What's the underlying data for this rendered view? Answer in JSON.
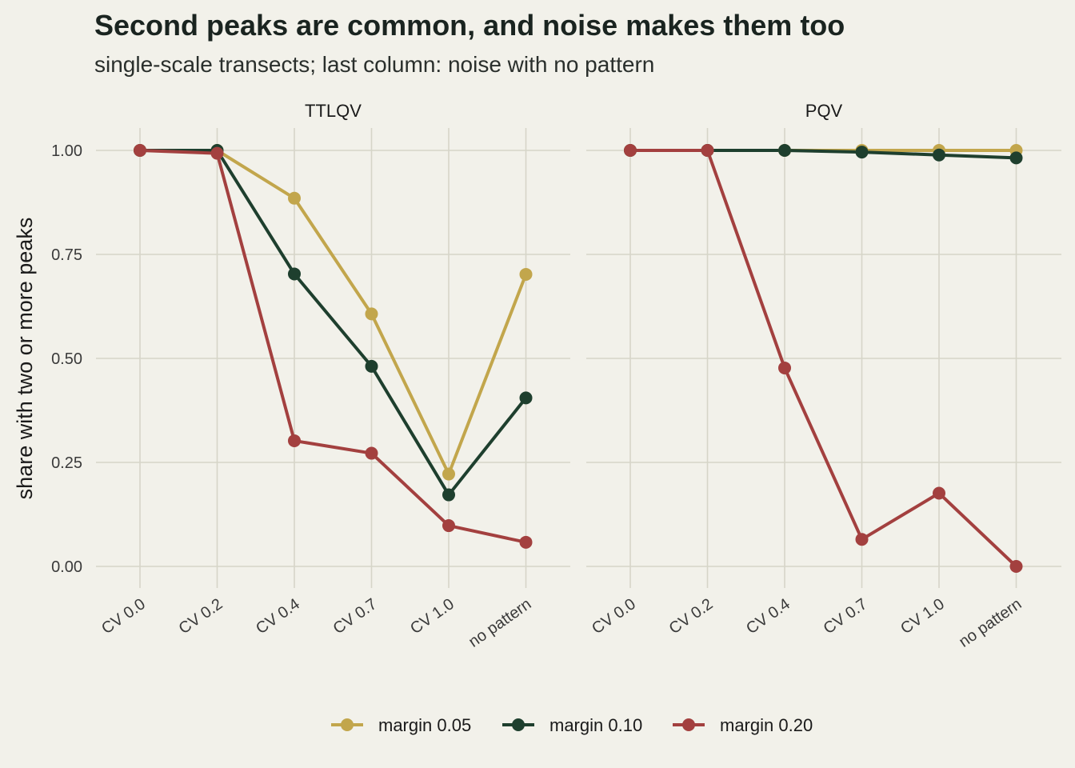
{
  "title": "Second peaks are common, and noise makes them too",
  "subtitle": "single-scale transects; last column: noise with no pattern",
  "chart_data": {
    "type": "line",
    "ylabel": "share with two or more peaks",
    "ylim": [
      0,
      1
    ],
    "yticks": [
      0,
      0.25,
      0.5,
      0.75,
      1.0
    ],
    "ytick_labels": [
      "0.00",
      "0.25",
      "0.50",
      "0.75",
      "1.00"
    ],
    "categories": [
      "CV 0.0",
      "CV 0.2",
      "CV 0.4",
      "CV 0.7",
      "CV 1.0",
      "no pattern"
    ],
    "grid": true,
    "legend_position": "bottom",
    "series_meta": [
      {
        "name": "margin 0.05",
        "color": "#c2a64c"
      },
      {
        "name": "margin 0.10",
        "color": "#1e3f2e"
      },
      {
        "name": "margin 0.20",
        "color": "#a3403f"
      }
    ],
    "panels": [
      {
        "label": "TTLQV",
        "series": [
          {
            "name": "margin 0.05",
            "values": [
              1.0,
              1.0,
              0.885,
              0.607,
              0.222,
              0.702
            ]
          },
          {
            "name": "margin 0.10",
            "values": [
              1.0,
              1.0,
              0.703,
              0.481,
              0.172,
              0.405
            ]
          },
          {
            "name": "margin 0.20",
            "values": [
              1.0,
              0.993,
              0.302,
              0.272,
              0.098,
              0.058
            ]
          }
        ]
      },
      {
        "label": "PQV",
        "series": [
          {
            "name": "margin 0.05",
            "values": [
              1.0,
              1.0,
              1.0,
              1.0,
              1.0,
              1.0
            ]
          },
          {
            "name": "margin 0.10",
            "values": [
              1.0,
              1.0,
              1.0,
              0.996,
              0.989,
              0.982
            ]
          },
          {
            "name": "margin 0.20",
            "values": [
              1.0,
              1.0,
              0.477,
              0.065,
              0.176,
              0.0
            ]
          }
        ]
      }
    ]
  }
}
